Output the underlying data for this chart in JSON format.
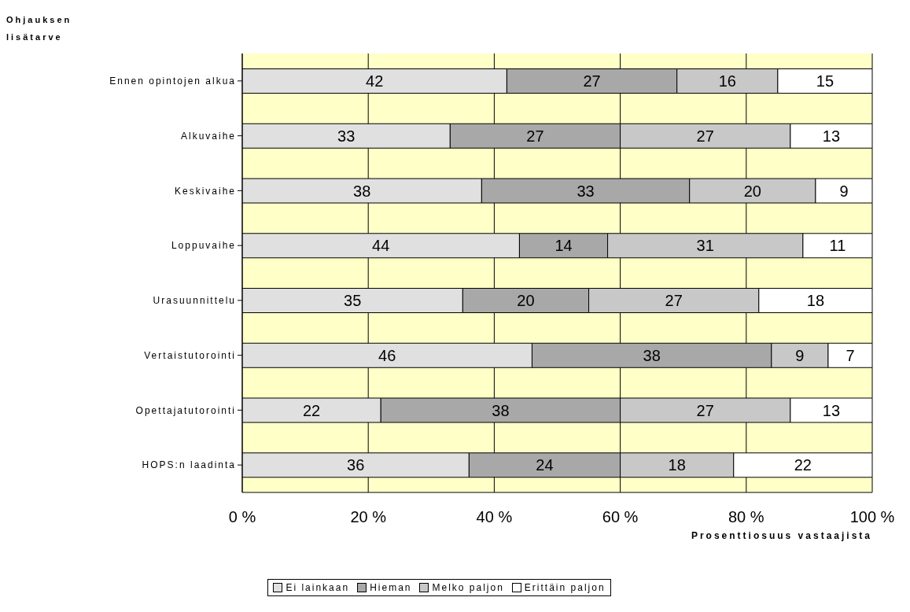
{
  "chart_data": {
    "type": "bar",
    "orientation": "horizontal",
    "stacked": true,
    "ylabel": "Ohjauksen lisätarve",
    "xlabel": "Prosenttiosuus vastaajista",
    "categories": [
      "Ennen opintojen alkua",
      "Alkuvaihe",
      "Keskivaihe",
      "Loppuvaihe",
      "Urasuunnittelu",
      "Vertaistutorointi",
      "Opettajatutorointi",
      "HOPS:n laadinta"
    ],
    "series": [
      {
        "name": "Ei lainkaan",
        "color": "#e0e0e0",
        "values": [
          42,
          33,
          38,
          44,
          35,
          46,
          22,
          36
        ]
      },
      {
        "name": "Hieman",
        "color": "#a8a8a8",
        "values": [
          27,
          27,
          33,
          14,
          20,
          38,
          38,
          24
        ]
      },
      {
        "name": "Melko paljon",
        "color": "#c8c8c8",
        "values": [
          16,
          27,
          20,
          31,
          27,
          9,
          27,
          18
        ]
      },
      {
        "name": "Erittäin paljon",
        "color": "#ffffff",
        "values": [
          15,
          13,
          9,
          11,
          18,
          7,
          13,
          22
        ]
      }
    ],
    "xlim": [
      0,
      100
    ],
    "xticks": [
      {
        "value": 0,
        "label": "0 %"
      },
      {
        "value": 20,
        "label": "20 %"
      },
      {
        "value": 40,
        "label": "40 %"
      },
      {
        "value": 60,
        "label": "60 %"
      },
      {
        "value": 80,
        "label": "80 %"
      },
      {
        "value": 100,
        "label": "100 %"
      }
    ],
    "grid": "x",
    "legend": "bottom",
    "data_labels": true
  }
}
